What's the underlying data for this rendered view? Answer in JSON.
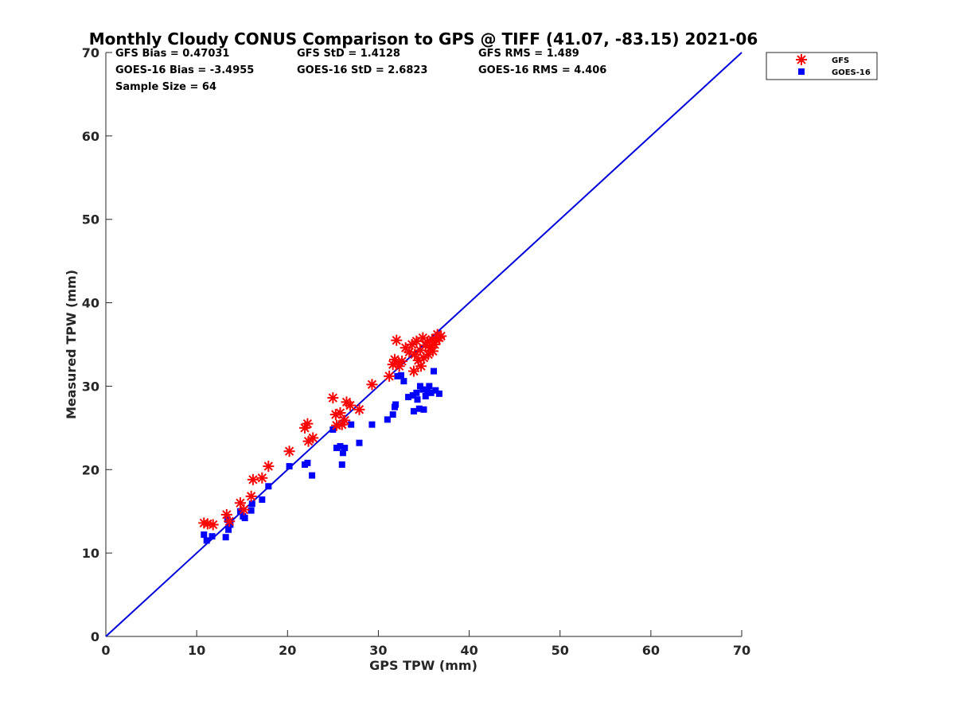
{
  "chart_data": {
    "type": "scatter",
    "title": "Monthly Cloudy CONUS Comparison to GPS @ TIFF (41.07, -83.15) 2021-06",
    "xlabel": "GPS TPW (mm)",
    "ylabel": "Measured TPW (mm)",
    "xlim": [
      0,
      70
    ],
    "ylim": [
      0,
      70
    ],
    "xticks": [
      "0",
      "10",
      "20",
      "30",
      "40",
      "50",
      "60",
      "70"
    ],
    "yticks": [
      "0",
      "10",
      "20",
      "30",
      "40",
      "50",
      "60",
      "70"
    ],
    "grid": false,
    "legend_position": "top-right-outside",
    "stats": {
      "gfs_bias": "GFS Bias = 0.47031",
      "gfs_std": "GFS StD = 1.4128",
      "gfs_rms": "GFS RMS = 1.489",
      "goes_bias": "GOES-16 Bias = -3.4955",
      "goes_std": "GOES-16 StD = 2.6823",
      "goes_rms": "GOES-16 RMS = 4.406",
      "sample_size": "Sample Size = 64"
    },
    "reference_line": {
      "color": "#0000dd",
      "points": [
        [
          0,
          0
        ],
        [
          70,
          70
        ]
      ]
    },
    "series": [
      {
        "name": "GFS",
        "marker": "asterisk",
        "color": "#ff0000",
        "points": [
          [
            10.8,
            13.6
          ],
          [
            11.2,
            13.5
          ],
          [
            11.8,
            13.4
          ],
          [
            13.3,
            14.6
          ],
          [
            13.6,
            13.8
          ],
          [
            14.8,
            16.0
          ],
          [
            15.2,
            15.2
          ],
          [
            16.0,
            16.8
          ],
          [
            16.2,
            18.8
          ],
          [
            17.2,
            19.0
          ],
          [
            17.9,
            20.4
          ],
          [
            20.2,
            22.2
          ],
          [
            21.9,
            25.0
          ],
          [
            22.2,
            25.5
          ],
          [
            22.3,
            23.4
          ],
          [
            22.8,
            23.8
          ],
          [
            25.0,
            28.6
          ],
          [
            25.3,
            26.6
          ],
          [
            25.4,
            25.3
          ],
          [
            25.8,
            26.8
          ],
          [
            26.0,
            25.4
          ],
          [
            26.3,
            25.9
          ],
          [
            26.5,
            28.1
          ],
          [
            26.9,
            27.7
          ],
          [
            27.9,
            27.2
          ],
          [
            29.3,
            30.2
          ],
          [
            31.2,
            31.2
          ],
          [
            31.6,
            32.6
          ],
          [
            31.8,
            33.2
          ],
          [
            32.0,
            35.5
          ],
          [
            32.3,
            32.4
          ],
          [
            32.6,
            33.0
          ],
          [
            33.0,
            34.6
          ],
          [
            33.4,
            34.1
          ],
          [
            33.7,
            35.0
          ],
          [
            33.9,
            31.8
          ],
          [
            34.0,
            33.8
          ],
          [
            34.2,
            35.4
          ],
          [
            34.4,
            33.1
          ],
          [
            34.6,
            34.3
          ],
          [
            34.7,
            32.4
          ],
          [
            34.9,
            35.8
          ],
          [
            35.0,
            33.4
          ],
          [
            35.2,
            34.9
          ],
          [
            35.4,
            35.3
          ],
          [
            35.5,
            33.8
          ],
          [
            35.7,
            34.6
          ],
          [
            35.9,
            35.6
          ],
          [
            36.0,
            34.2
          ],
          [
            36.2,
            35.0
          ],
          [
            36.4,
            35.5
          ],
          [
            36.5,
            36.2
          ],
          [
            36.7,
            35.8
          ],
          [
            36.9,
            36.0
          ]
        ]
      },
      {
        "name": "GOES-16",
        "marker": "square",
        "color": "#0000ff",
        "points": [
          [
            10.8,
            12.2
          ],
          [
            11.1,
            11.5
          ],
          [
            11.7,
            12.0
          ],
          [
            13.2,
            11.9
          ],
          [
            13.4,
            14.0
          ],
          [
            13.5,
            12.8
          ],
          [
            13.7,
            13.4
          ],
          [
            14.8,
            15.0
          ],
          [
            15.1,
            14.4
          ],
          [
            15.3,
            14.2
          ],
          [
            16.0,
            15.1
          ],
          [
            16.1,
            15.9
          ],
          [
            17.2,
            16.4
          ],
          [
            17.9,
            18.0
          ],
          [
            20.2,
            20.4
          ],
          [
            21.9,
            20.6
          ],
          [
            22.2,
            20.8
          ],
          [
            22.7,
            19.3
          ],
          [
            25.0,
            24.8
          ],
          [
            25.4,
            22.6
          ],
          [
            25.8,
            22.8
          ],
          [
            26.1,
            22.0
          ],
          [
            26.0,
            20.6
          ],
          [
            26.3,
            22.6
          ],
          [
            27.0,
            25.4
          ],
          [
            27.9,
            23.2
          ],
          [
            29.3,
            25.4
          ],
          [
            31.0,
            26.0
          ],
          [
            31.6,
            26.6
          ],
          [
            31.8,
            27.5
          ],
          [
            31.9,
            27.8
          ],
          [
            32.1,
            31.2
          ],
          [
            32.5,
            31.3
          ],
          [
            32.8,
            30.6
          ],
          [
            33.3,
            28.7
          ],
          [
            33.8,
            28.9
          ],
          [
            33.9,
            27.0
          ],
          [
            34.2,
            29.2
          ],
          [
            34.3,
            28.4
          ],
          [
            34.5,
            27.3
          ],
          [
            34.6,
            30.0
          ],
          [
            34.9,
            29.6
          ],
          [
            35.0,
            27.2
          ],
          [
            35.2,
            28.8
          ],
          [
            35.4,
            29.4
          ],
          [
            35.6,
            30.0
          ],
          [
            35.8,
            29.2
          ],
          [
            36.1,
            31.8
          ],
          [
            36.3,
            29.5
          ],
          [
            36.7,
            29.1
          ]
        ]
      }
    ]
  }
}
